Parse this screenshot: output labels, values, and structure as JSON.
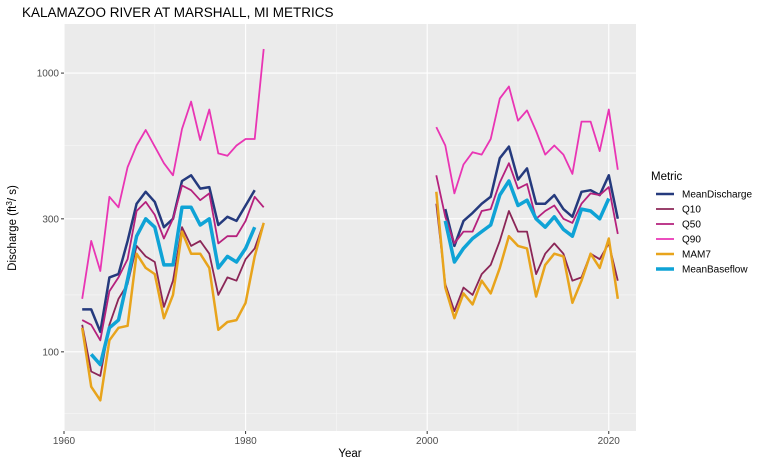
{
  "chart_data": {
    "type": "line",
    "title": "KALAMAZOO RIVER AT MARSHALL, MI  METRICS",
    "xlabel": "Year",
    "ylabel": "Discharge (ft",
    "ylabel_sup": "3",
    "ylabel_tail": "/ s)",
    "y_scale": "log",
    "xlim": [
      1960,
      2023
    ],
    "ylim": [
      52,
      1500
    ],
    "x_ticks": [
      1960,
      1980,
      2000,
      2020
    ],
    "x_tick_labels": [
      "1960",
      "1980",
      "2000",
      "2020"
    ],
    "y_ticks": [
      100,
      300,
      1000
    ],
    "y_tick_labels": [
      "100",
      "300",
      "1000"
    ],
    "y_minor_ticks": [
      60,
      160,
      550
    ],
    "grid": true,
    "background": "#ebebeb",
    "legend": {
      "title": "Metric",
      "position": "right",
      "entries": [
        "MeanDischarge",
        "Q10",
        "Q50",
        "Q90",
        "MAM7",
        "MeanBaseflow"
      ]
    },
    "series": [
      {
        "name": "MeanDischarge",
        "color": "#253a7d",
        "width": 2.5,
        "x": [
          1962,
          1963,
          1964,
          1965,
          1966,
          1967,
          1968,
          1969,
          1970,
          1971,
          1972,
          1973,
          1974,
          1975,
          1976,
          1977,
          1978,
          1979,
          1980,
          1981,
          null,
          2002,
          2003,
          2004,
          2005,
          2006,
          2007,
          2008,
          2009,
          2010,
          2011,
          2012,
          2013,
          2014,
          2015,
          2016,
          2017,
          2018,
          2019,
          2020,
          2021
        ],
        "y": [
          142,
          142,
          118,
          185,
          190,
          250,
          340,
          375,
          345,
          280,
          300,
          410,
          430,
          385,
          390,
          285,
          305,
          295,
          335,
          380,
          null,
          325,
          240,
          295,
          315,
          340,
          360,
          495,
          545,
          415,
          455,
          340,
          340,
          365,
          325,
          305,
          375,
          380,
          365,
          430,
          300
        ]
      },
      {
        "name": "Q10",
        "color": "#8b2657",
        "width": 1.8,
        "x": [
          1962,
          1963,
          1964,
          1965,
          1966,
          1967,
          1968,
          1969,
          1970,
          1971,
          1972,
          1973,
          1974,
          1975,
          1976,
          1977,
          1978,
          1979,
          1980,
          1981,
          1982,
          null,
          2001,
          2002,
          2003,
          2004,
          2005,
          2006,
          2007,
          2008,
          2009,
          2010,
          2011,
          2012,
          2013,
          2014,
          2015,
          2016,
          2017,
          2018,
          2019,
          2020,
          2021
        ],
        "y": [
          125,
          85,
          82,
          125,
          155,
          175,
          240,
          220,
          210,
          145,
          180,
          280,
          240,
          250,
          225,
          160,
          185,
          180,
          215,
          235,
          290,
          null,
          340,
          175,
          140,
          170,
          160,
          190,
          205,
          250,
          320,
          270,
          270,
          190,
          225,
          245,
          225,
          180,
          185,
          225,
          215,
          245,
          180
        ]
      },
      {
        "name": "Q50",
        "color": "#b5217d",
        "width": 1.8,
        "x": [
          1962,
          1963,
          1964,
          1965,
          1966,
          1967,
          1968,
          1969,
          1970,
          1971,
          1972,
          1973,
          1974,
          1975,
          1976,
          1977,
          1978,
          1979,
          1980,
          1981,
          1982,
          null,
          2001,
          2002,
          2003,
          2004,
          2005,
          2006,
          2007,
          2008,
          2009,
          2010,
          2011,
          2012,
          2013,
          2014,
          2015,
          2016,
          2017,
          2018,
          2019,
          2020,
          2021
        ],
        "y": [
          130,
          125,
          110,
          165,
          185,
          215,
          320,
          345,
          310,
          255,
          300,
          395,
          380,
          350,
          370,
          245,
          260,
          260,
          295,
          360,
          330,
          null,
          430,
          305,
          245,
          270,
          270,
          320,
          325,
          405,
          475,
          385,
          400,
          300,
          320,
          335,
          300,
          290,
          340,
          370,
          365,
          390,
          265
        ]
      },
      {
        "name": "Q90",
        "color": "#e935b4",
        "width": 1.8,
        "x": [
          1962,
          1963,
          1964,
          1965,
          1966,
          1967,
          1968,
          1969,
          1970,
          1971,
          1972,
          1973,
          1974,
          1975,
          1976,
          1977,
          1978,
          1979,
          1980,
          1981,
          1982,
          null,
          2001,
          2002,
          2003,
          2004,
          2005,
          2006,
          2007,
          2008,
          2009,
          2010,
          2011,
          2012,
          2013,
          2014,
          2015,
          2016,
          2017,
          2018,
          2019,
          2020,
          2021
        ],
        "y": [
          155,
          250,
          195,
          360,
          330,
          460,
          550,
          625,
          545,
          475,
          430,
          630,
          790,
          575,
          740,
          515,
          505,
          550,
          580,
          580,
          1220,
          null,
          640,
          550,
          370,
          470,
          520,
          510,
          580,
          810,
          895,
          675,
          735,
          620,
          510,
          550,
          510,
          435,
          670,
          670,
          525,
          740,
          450
        ]
      },
      {
        "name": "MAM7",
        "color": "#e8a41c",
        "width": 2.5,
        "x": [
          1962,
          1963,
          1964,
          1965,
          1966,
          1967,
          1968,
          1969,
          1970,
          1971,
          1972,
          1973,
          1974,
          1975,
          1976,
          1977,
          1978,
          1979,
          1980,
          1981,
          1982,
          null,
          2001,
          2002,
          2003,
          2004,
          2005,
          2006,
          2007,
          2008,
          2009,
          2010,
          2011,
          2012,
          2013,
          2014,
          2015,
          2016,
          2017,
          2018,
          2019,
          2020,
          2021
        ],
        "y": [
          122,
          75,
          67,
          110,
          122,
          124,
          225,
          200,
          190,
          132,
          160,
          270,
          225,
          225,
          200,
          120,
          128,
          130,
          150,
          220,
          290,
          null,
          375,
          170,
          132,
          162,
          148,
          180,
          162,
          200,
          260,
          240,
          235,
          158,
          205,
          225,
          220,
          150,
          180,
          225,
          200,
          255,
          155
        ]
      },
      {
        "name": "MeanBaseflow",
        "color": "#0fa3d6",
        "width": 3.5,
        "x": [
          1963,
          1964,
          1965,
          1966,
          1967,
          1968,
          1969,
          1970,
          1971,
          1972,
          1973,
          1974,
          1975,
          1976,
          1977,
          1978,
          1979,
          1980,
          1981,
          null,
          2002,
          2003,
          2004,
          2005,
          2006,
          2007,
          2008,
          2009,
          2010,
          2011,
          2012,
          2013,
          2014,
          2015,
          2016,
          2017,
          2018,
          2019,
          2020
        ],
        "y": [
          98,
          90,
          122,
          130,
          182,
          260,
          300,
          280,
          205,
          205,
          330,
          330,
          285,
          300,
          200,
          220,
          210,
          235,
          280,
          null,
          295,
          210,
          235,
          255,
          270,
          285,
          365,
          410,
          335,
          350,
          300,
          280,
          305,
          275,
          260,
          325,
          320,
          300,
          355
        ]
      }
    ]
  }
}
